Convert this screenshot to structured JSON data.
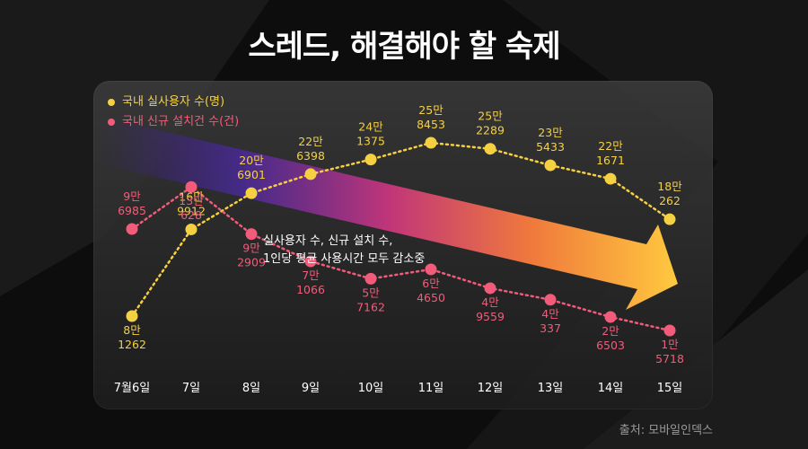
{
  "headline": "스레드, 해결해야 할 숙제",
  "source": "출처: 모바일인덱스",
  "colors": {
    "users": "#f5d142",
    "installs": "#f25c7a",
    "background": "#0d0d0d"
  },
  "chart_data": {
    "type": "line",
    "title": "스레드, 해결해야 할 숙제",
    "categories": [
      "7월6일",
      "7일",
      "8일",
      "9일",
      "10일",
      "11일",
      "12일",
      "13일",
      "14일",
      "15일"
    ],
    "series": [
      {
        "key": "users",
        "name": "국내 실사용자 수(명)",
        "values": [
          81262,
          169912,
          206901,
          226398,
          241375,
          258453,
          252289,
          235433,
          221671,
          180262
        ],
        "labels": [
          [
            "8만",
            "1262"
          ],
          [
            "16만",
            "9912"
          ],
          [
            "20만",
            "6901"
          ],
          [
            "22만",
            "6398"
          ],
          [
            "24만",
            "1375"
          ],
          [
            "25만",
            "8453"
          ],
          [
            "25만",
            "2289"
          ],
          [
            "23만",
            "5433"
          ],
          [
            "22만",
            "1671"
          ],
          [
            "18만",
            "262"
          ]
        ]
      },
      {
        "key": "installs",
        "name": "국내 신규 설치건 수(건)",
        "values": [
          96985,
          130628,
          92909,
          71066,
          57162,
          64650,
          49559,
          40337,
          26503,
          15718
        ],
        "labels": [
          [
            "9만",
            "6985"
          ],
          [
            "13만",
            "628"
          ],
          [
            "9만",
            "2909"
          ],
          [
            "7만",
            "1066"
          ],
          [
            "5만",
            "7162"
          ],
          [
            "6만",
            "4650"
          ],
          [
            "4만",
            "9559"
          ],
          [
            "4만",
            "337"
          ],
          [
            "2만",
            "6503"
          ],
          [
            "1만",
            "5718"
          ]
        ]
      }
    ],
    "annotation": [
      "실사용자 수, 신규 설치 수,",
      "1인당 평균 사용시간 모두 감소중"
    ],
    "xlabel": "",
    "ylabel": "",
    "grid": false,
    "legend": "top-left"
  }
}
